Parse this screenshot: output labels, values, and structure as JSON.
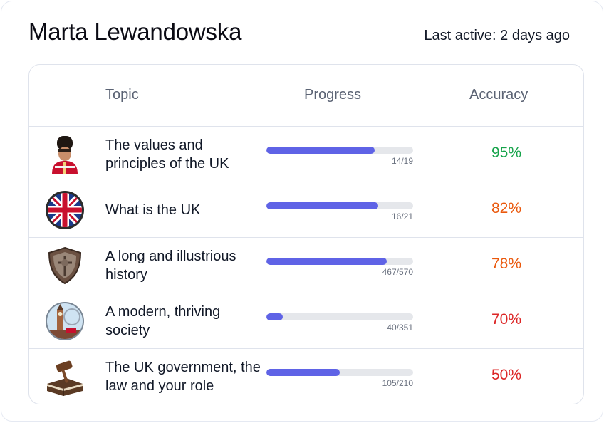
{
  "user": {
    "name": "Marta Lewandowska",
    "last_active": "Last active: 2 days ago"
  },
  "table": {
    "headers": {
      "topic": "Topic",
      "progress": "Progress",
      "accuracy": "Accuracy"
    },
    "rows": [
      {
        "icon": "royal-guard-icon",
        "topic": "The values and principles of the UK",
        "progress_text": "14/19",
        "progress_fraction": 0.737,
        "accuracy": "95%",
        "accuracy_color": "#16a34a"
      },
      {
        "icon": "union-flag-icon",
        "topic": "What is the UK",
        "progress_text": "16/21",
        "progress_fraction": 0.762,
        "accuracy": "82%",
        "accuracy_color": "#ea580c"
      },
      {
        "icon": "shield-crest-icon",
        "topic": "A long and illustrious history",
        "progress_text": "467/570",
        "progress_fraction": 0.819,
        "accuracy": "78%",
        "accuracy_color": "#ea580c"
      },
      {
        "icon": "big-ben-london-icon",
        "topic": "A modern, thriving society",
        "progress_text": "40/351",
        "progress_fraction": 0.114,
        "accuracy": "70%",
        "accuracy_color": "#dc2626"
      },
      {
        "icon": "gavel-books-icon",
        "topic": "The UK government, the law and your role",
        "progress_text": "105/210",
        "progress_fraction": 0.5,
        "accuracy": "50%",
        "accuracy_color": "#dc2626"
      }
    ]
  }
}
